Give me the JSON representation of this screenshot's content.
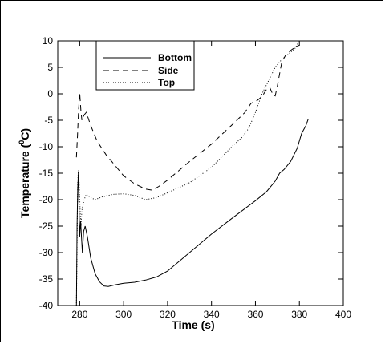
{
  "chart_data": {
    "type": "line",
    "title": "",
    "xlabel": "Time (s)",
    "ylabel_main": "Temperature (",
    "ylabel_sup": "0",
    "ylabel_tail": "C)",
    "xlim": [
      270,
      400
    ],
    "ylim": [
      -40,
      10
    ],
    "xticks": [
      280,
      300,
      320,
      340,
      360,
      380,
      400
    ],
    "yticks": [
      10,
      5,
      0,
      -5,
      -10,
      -15,
      -20,
      -25,
      -30,
      -35,
      -40
    ],
    "legend_position": "top-left",
    "series": [
      {
        "name": "Bottom",
        "dash": "solid",
        "points": [
          [
            278.5,
            -40
          ],
          [
            278.8,
            -25
          ],
          [
            279.1,
            -18
          ],
          [
            279.4,
            -15
          ],
          [
            279.7,
            -22
          ],
          [
            280.0,
            -27
          ],
          [
            280.4,
            -24
          ],
          [
            280.8,
            -27
          ],
          [
            281.2,
            -30
          ],
          [
            281.8,
            -26
          ],
          [
            282.5,
            -25
          ],
          [
            283.5,
            -27
          ],
          [
            285,
            -31
          ],
          [
            287,
            -34
          ],
          [
            289,
            -35.5
          ],
          [
            291,
            -36.3
          ],
          [
            293,
            -36.4
          ],
          [
            296,
            -36.1
          ],
          [
            300,
            -35.8
          ],
          [
            305,
            -35.6
          ],
          [
            310,
            -35.2
          ],
          [
            315,
            -34.6
          ],
          [
            320,
            -33.5
          ],
          [
            330,
            -30
          ],
          [
            340,
            -26.5
          ],
          [
            350,
            -23.3
          ],
          [
            360,
            -20.2
          ],
          [
            365,
            -18.5
          ],
          [
            369,
            -16.5
          ],
          [
            371,
            -15
          ],
          [
            373,
            -14.3
          ],
          [
            376,
            -12.8
          ],
          [
            379,
            -10.3
          ],
          [
            381,
            -7.5
          ],
          [
            383,
            -6
          ],
          [
            384,
            -4.8
          ]
        ]
      },
      {
        "name": "Side",
        "dash": "dashed",
        "points": [
          [
            278.5,
            -12
          ],
          [
            279.0,
            -8
          ],
          [
            279.5,
            -3
          ],
          [
            280.0,
            0.2
          ],
          [
            280.5,
            -3
          ],
          [
            281,
            -5
          ],
          [
            282,
            -4
          ],
          [
            283,
            -3.5
          ],
          [
            285,
            -6
          ],
          [
            288,
            -9
          ],
          [
            292,
            -11.5
          ],
          [
            296,
            -13.5
          ],
          [
            300,
            -15.5
          ],
          [
            305,
            -17
          ],
          [
            310,
            -18
          ],
          [
            313,
            -18.2
          ],
          [
            316,
            -17.5
          ],
          [
            320,
            -16.3
          ],
          [
            330,
            -12.8
          ],
          [
            340,
            -9.5
          ],
          [
            350,
            -5.6
          ],
          [
            355,
            -3.6
          ],
          [
            358,
            -1.8
          ],
          [
            361,
            -1.2
          ],
          [
            363,
            -0.5
          ],
          [
            365,
            0.8
          ],
          [
            366.5,
            1.2
          ],
          [
            368,
            -0.2
          ],
          [
            369,
            -0.4
          ],
          [
            370,
            1.5
          ],
          [
            372,
            6
          ],
          [
            374,
            7.5
          ],
          [
            376,
            8.2
          ],
          [
            378,
            8.8
          ],
          [
            380,
            9.2
          ]
        ]
      },
      {
        "name": "Top",
        "dash": "dotted",
        "points": [
          [
            278.5,
            -40
          ],
          [
            278.8,
            -28
          ],
          [
            279.1,
            -17
          ],
          [
            279.4,
            -14.5
          ],
          [
            279.8,
            -17
          ],
          [
            280.2,
            -22
          ],
          [
            280.6,
            -25
          ],
          [
            281.0,
            -22
          ],
          [
            282,
            -20
          ],
          [
            283,
            -19
          ],
          [
            285,
            -19.6
          ],
          [
            287,
            -20
          ],
          [
            290,
            -19.5
          ],
          [
            295,
            -19
          ],
          [
            300,
            -18.9
          ],
          [
            305,
            -19.2
          ],
          [
            310,
            -20
          ],
          [
            315,
            -19.6
          ],
          [
            320,
            -18.7
          ],
          [
            330,
            -16.8
          ],
          [
            340,
            -13.9
          ],
          [
            350,
            -9.7
          ],
          [
            354,
            -8.2
          ],
          [
            357,
            -6.5
          ],
          [
            360,
            -3.5
          ],
          [
            363,
            0
          ],
          [
            366,
            2.5
          ],
          [
            369,
            5
          ],
          [
            372,
            6.5
          ],
          [
            375,
            7.5
          ],
          [
            378,
            8.6
          ],
          [
            380,
            10
          ]
        ]
      }
    ]
  }
}
